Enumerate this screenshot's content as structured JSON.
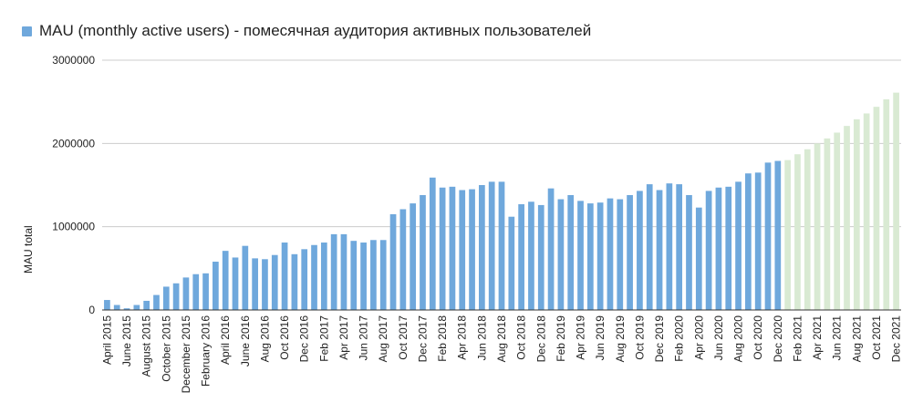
{
  "legend": {
    "label": "MAU (monthly active users) - помесячная аудитория активных пользователей",
    "color": "#6fa8dc"
  },
  "chart_data": {
    "type": "bar",
    "ylabel": "MAU total",
    "ylim": [
      0,
      3000000
    ],
    "yticks": [
      "0",
      "1000000",
      "2000000",
      "3000000"
    ],
    "grid": true,
    "legend_position": "top-left",
    "colors": {
      "actual": "#6fa8dc",
      "forecast": "#d9ead3"
    },
    "categories": [
      "April 2015",
      "May 2015",
      "June 2015",
      "July 2015",
      "August 2015",
      "September 2015",
      "October 2015",
      "November 2015",
      "December 2015",
      "January 2016",
      "February 2016",
      "March 2016",
      "April 2016",
      "May 2016",
      "June 2016",
      "July 2016",
      "Aug 2016",
      "Sep 2016",
      "Oct 2016",
      "Nov 2016",
      "Dec 2016",
      "Jan 2017",
      "Feb 2017",
      "Mar 2017",
      "Apr 2017",
      "May 2017",
      "Jun 2017",
      "Jul 2017",
      "Aug 2017",
      "Sep 2017",
      "Oct 2017",
      "Nov 2017",
      "Dec 2017",
      "Jan 2018",
      "Feb 2018",
      "Mar 2018",
      "Apr 2018",
      "May 2018",
      "Jun 2018",
      "Jul 2018",
      "Aug 2018",
      "Sep 2018",
      "Oct 2018",
      "Nov 2018",
      "Dec 2018",
      "Jan 2019",
      "Feb 2019",
      "Mar 2019",
      "Apr 2019",
      "May 2019",
      "Jun 2019",
      "Jul 2019",
      "Aug 2019",
      "Sep 2019",
      "Oct 2019",
      "Nov 2019",
      "Dec 2019",
      "Jan 2020",
      "Feb 2020",
      "Mar 2020",
      "Apr 2020",
      "May 2020",
      "Jun 2020",
      "Jul 2020",
      "Aug 2020",
      "Sep 2020",
      "Oct 2020",
      "Nov 2020",
      "Dec 2020",
      "Jan 2021",
      "Feb 2021",
      "Mar 2021",
      "Apr 2021",
      "May 2021",
      "Jun 2021",
      "Jul 2021",
      "Aug 2021",
      "Sep 2021",
      "Oct 2021",
      "Nov 2021",
      "Dec 2021"
    ],
    "tick_labels_shown": [
      "April 2015",
      "June 2015",
      "August 2015",
      "October 2015",
      "December 2015",
      "February 2016",
      "April 2016",
      "June 2016",
      "Aug 2016",
      "Oct 2016",
      "Dec 2016",
      "Feb 2017",
      "Apr 2017",
      "Jun 2017",
      "Aug 2017",
      "Oct 2017",
      "Dec 2017",
      "Feb 2018",
      "Apr 2018",
      "Jun 2018",
      "Aug 2018",
      "Oct 2018",
      "Dec 2018",
      "Feb 2019",
      "Apr 2019",
      "Jun 2019",
      "Aug 2019",
      "Oct 2019",
      "Dec 2019",
      "Feb 2020",
      "Apr 2020",
      "Jun 2020",
      "Aug 2020",
      "Oct 2020",
      "Dec 2020",
      "Feb 2021",
      "Apr 2021",
      "Jun 2021",
      "Aug 2021",
      "Oct 2021",
      "Dec 2021"
    ],
    "forecast_from": "Jan 2021",
    "values": [
      120000,
      60000,
      20000,
      60000,
      110000,
      180000,
      280000,
      320000,
      390000,
      430000,
      440000,
      580000,
      710000,
      630000,
      770000,
      620000,
      610000,
      660000,
      810000,
      670000,
      730000,
      780000,
      810000,
      910000,
      910000,
      830000,
      810000,
      840000,
      840000,
      1150000,
      1210000,
      1280000,
      1380000,
      1590000,
      1470000,
      1480000,
      1440000,
      1450000,
      1500000,
      1540000,
      1540000,
      1120000,
      1270000,
      1300000,
      1260000,
      1460000,
      1330000,
      1380000,
      1310000,
      1280000,
      1290000,
      1340000,
      1330000,
      1380000,
      1430000,
      1510000,
      1440000,
      1520000,
      1510000,
      1380000,
      1230000,
      1430000,
      1470000,
      1480000,
      1540000,
      1640000,
      1650000,
      1770000,
      1790000,
      1800000,
      1870000,
      1930000,
      2000000,
      2060000,
      2130000,
      2210000,
      2290000,
      2360000,
      2440000,
      2530000,
      2610000
    ]
  }
}
